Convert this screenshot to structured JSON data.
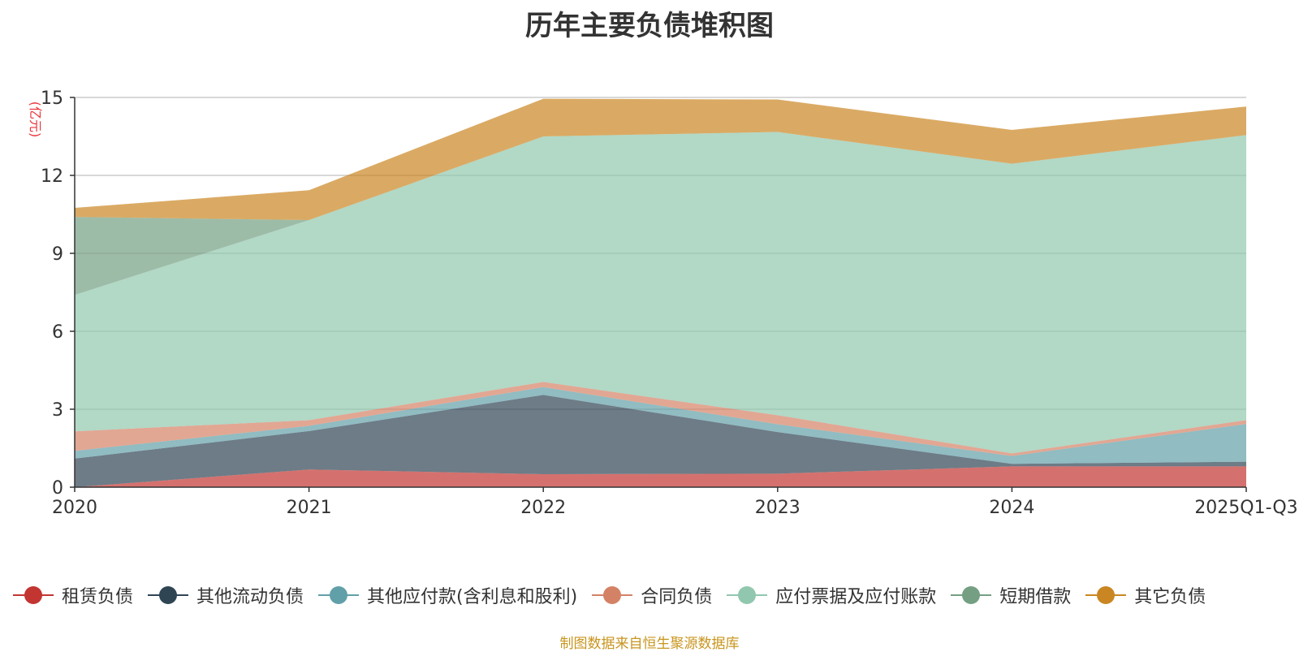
{
  "chart_data": {
    "type": "area",
    "title": "历年主要负债堆积图",
    "ylabel": "(亿元)",
    "x": [
      "2020",
      "2021",
      "2022",
      "2023",
      "2024",
      "2025Q1-Q3"
    ],
    "ylim": [
      0,
      15
    ],
    "yticks": [
      0,
      3,
      6,
      9,
      12,
      15
    ],
    "grid": true,
    "stacked": true,
    "legend_position": "bottom",
    "series": [
      {
        "name": "租赁负债",
        "color": "#c23531",
        "values": [
          0.0,
          0.68,
          0.5,
          0.52,
          0.8,
          0.8
        ]
      },
      {
        "name": "其他流动负债",
        "color": "#2f4554",
        "values": [
          1.1,
          1.48,
          3.05,
          1.6,
          0.1,
          0.18
        ]
      },
      {
        "name": "其他应付款(含利息和股利)",
        "color": "#61a0a8",
        "values": [
          0.3,
          0.2,
          0.3,
          0.3,
          0.3,
          1.45
        ]
      },
      {
        "name": "合同负债",
        "color": "#d48265",
        "values": [
          0.75,
          0.22,
          0.2,
          0.35,
          0.1,
          0.15
        ]
      },
      {
        "name": "应付票据及应付账款",
        "color": "#91c7ae",
        "values": [
          5.25,
          7.7,
          9.45,
          10.9,
          11.15,
          10.97
        ]
      },
      {
        "name": "短期借款",
        "color": "#749f83",
        "values": [
          3.0,
          0.0,
          0.0,
          0.0,
          0.0,
          0.0
        ]
      },
      {
        "name": "其它负债",
        "color": "#ca8622",
        "values": [
          0.35,
          1.15,
          1.45,
          1.25,
          1.3,
          1.1
        ]
      }
    ]
  },
  "footer": {
    "source": "制图数据来自恒生聚源数据库"
  }
}
